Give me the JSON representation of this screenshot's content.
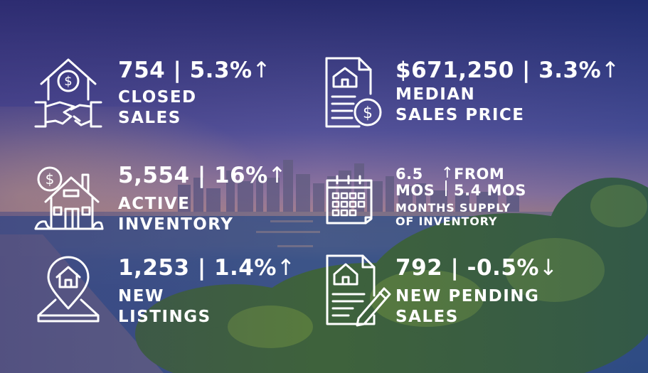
{
  "stats": {
    "closed_sales": {
      "value": "754 | 5.3%",
      "direction_icon": "up-arrow-icon",
      "arrow": "↑",
      "line1": "CLOSED",
      "line2": "SALES"
    },
    "median_price": {
      "value": "$671,250 | 3.3%",
      "direction_icon": "up-arrow-icon",
      "arrow": "↑",
      "line1": "MEDIAN",
      "line2": "SALES PRICE"
    },
    "active_inventory": {
      "value": "5,554 | 16%",
      "direction_icon": "up-arrow-icon",
      "arrow": "↑",
      "line1": "ACTIVE",
      "line2": "INVENTORY"
    },
    "months_supply": {
      "current_num": "6.5",
      "current_unit": "MOS",
      "arrow": "↑",
      "from_line1": "FROM",
      "from_line2": "5.4 MOS",
      "line1": "MONTHS SUPPLY",
      "line2": "OF INVENTORY"
    },
    "new_listings": {
      "value": "1,253 | 1.4%",
      "direction_icon": "up-arrow-icon",
      "arrow": "↑",
      "line1": "NEW",
      "line2": "LISTINGS"
    },
    "new_pending": {
      "value": "792 | -0.5%",
      "direction_icon": "down-arrow-icon",
      "arrow": "↓",
      "line1": "NEW PENDING",
      "line2": "SALES"
    }
  },
  "colors": {
    "sky_top": "#27285f",
    "sky_mid": "#6b5a9e",
    "horizon": "#d89a78",
    "water": "#3a5a86",
    "foliage": "#3d6a2a",
    "text": "#ffffff"
  }
}
